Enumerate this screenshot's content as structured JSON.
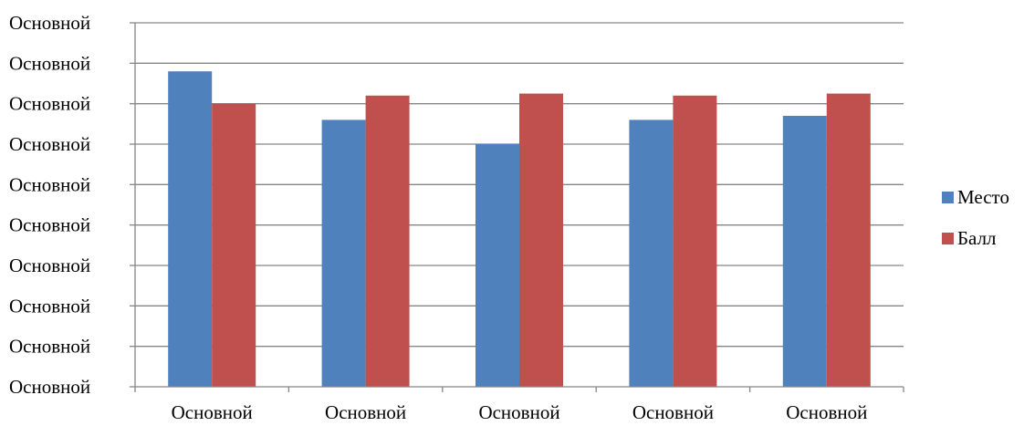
{
  "chart_data": {
    "type": "bar",
    "categories": [
      "Основной",
      "Основной",
      "Основной",
      "Основной",
      "Основной"
    ],
    "y_tick_labels": [
      "Основной",
      "Основной",
      "Основной",
      "Основной",
      "Основной",
      "Основной",
      "Основной",
      "Основной",
      "Основной",
      "Основной"
    ],
    "ylim": [
      0,
      9
    ],
    "grid": true,
    "legend_position": "right",
    "series": [
      {
        "name": "Место",
        "color": "#4F81BD",
        "values": [
          7.8,
          6.6,
          6.0,
          6.6,
          6.7
        ]
      },
      {
        "name": "Балл",
        "color": "#C0504D",
        "values": [
          7.0,
          7.2,
          7.25,
          7.2,
          7.25
        ]
      }
    ]
  }
}
